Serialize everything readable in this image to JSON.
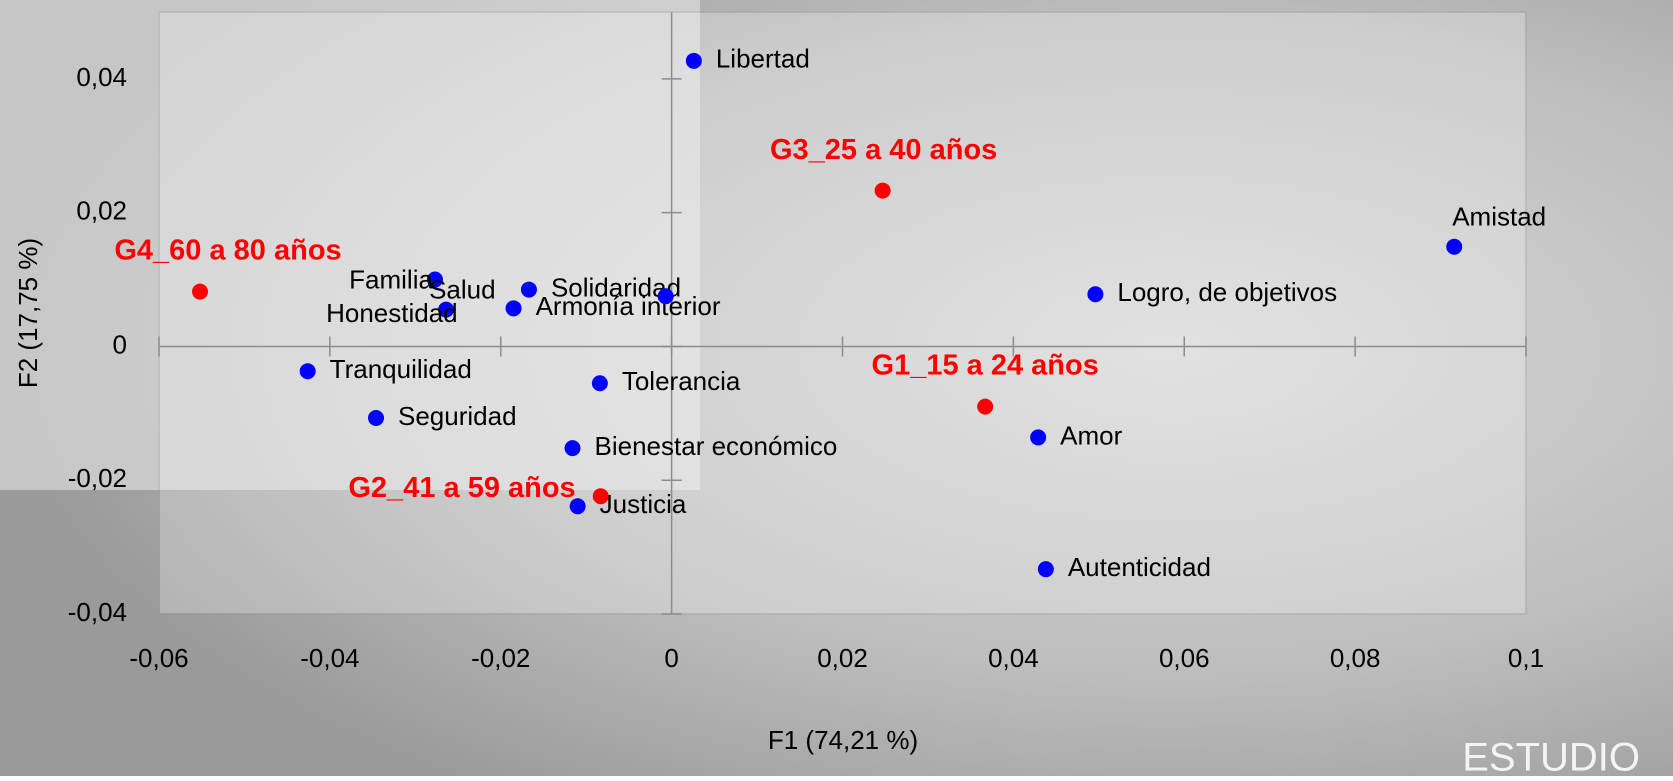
{
  "chart_data": {
    "type": "scatter",
    "x_label": "F1 (74,21 %)",
    "y_label": "F2 (17,75 %)",
    "xlim": [
      -0.06,
      0.1
    ],
    "ylim": [
      -0.04,
      0.05
    ],
    "xticks": [
      {
        "value": -0.06,
        "label": "-0,06"
      },
      {
        "value": -0.04,
        "label": "-0,04"
      },
      {
        "value": -0.02,
        "label": "-0,02"
      },
      0,
      {
        "value": 0.02,
        "label": "0,02"
      },
      {
        "value": 0.04,
        "label": "0,04"
      },
      {
        "value": 0.06,
        "label": "0,06"
      },
      {
        "value": 0.08,
        "label": "0,08"
      },
      {
        "value": 0.1,
        "label": "0,1"
      }
    ],
    "yticks": [
      {
        "value": -0.04,
        "label": "-0,04"
      },
      {
        "value": -0.02,
        "label": "-0,02"
      },
      0,
      {
        "value": 0.02,
        "label": "0,02"
      },
      {
        "value": 0.04,
        "label": "0,04"
      }
    ],
    "series": [
      {
        "color": "#0000ff",
        "labels": [
          "Libertad",
          "Amistad",
          "Logro, de objetivos",
          "Familia",
          "Salud",
          "Solidaridad",
          "Armonía interior",
          "Honestidad",
          "Tranquilidad",
          "Seguridad",
          "Tolerancia",
          "Bienestar económico",
          "Justicia",
          "Amor",
          "Autenticidad"
        ],
        "x": [
          0.0026,
          0.0916,
          0.0496,
          -0.0277,
          -0.0264,
          -0.0167,
          -0.0185,
          -0.0007,
          -0.0426,
          -0.0346,
          -0.0084,
          -0.0116,
          -0.011,
          0.0429,
          0.0438
        ],
        "y": [
          0.0427,
          0.0149,
          0.0078,
          0.01,
          0.0055,
          0.0085,
          0.0057,
          0.0075,
          -0.0037,
          -0.0107,
          -0.0055,
          -0.0152,
          -0.0239,
          -0.0136,
          -0.0333
        ]
      },
      {
        "color": "#ff0000",
        "labels": [
          "G4_60 a 80 años",
          "G3_25 a 40 años",
          "G1_15 a 24 años",
          "G2_41 a 59 años"
        ],
        "x": [
          -0.0552,
          0.0247,
          0.0367,
          -0.0083
        ],
        "y": [
          0.0082,
          0.0233,
          -0.009,
          -0.0224
        ]
      }
    ],
    "watermark": "ESTUDIO"
  }
}
